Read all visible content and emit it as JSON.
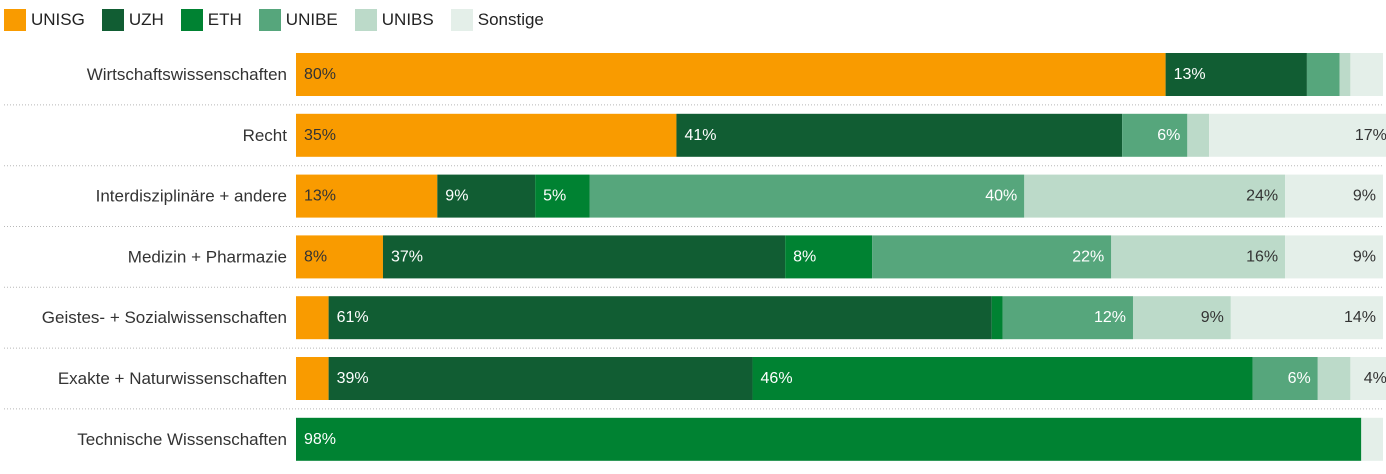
{
  "chart_data": {
    "type": "bar",
    "orientation": "horizontal",
    "stacked": true,
    "normalized_percent": true,
    "categories": [
      "Wirtschaftswissenschaften",
      "Recht",
      "Interdisziplinäre + andere",
      "Medizin + Pharmazie",
      "Geistes- + Sozialwissenschaften",
      "Exakte + Naturwissenschaften",
      "Technische Wissenschaften"
    ],
    "series": [
      {
        "name": "UNISG",
        "color": "#f99b00",
        "label_color": "#333333",
        "values": [
          80,
          35,
          13,
          8,
          3,
          3,
          0
        ],
        "labels": [
          "80%",
          "35%",
          "13%",
          "8%",
          "",
          "",
          ""
        ]
      },
      {
        "name": "UZH",
        "color": "#115d33",
        "label_color": "#ffffff",
        "values": [
          13,
          41,
          9,
          37,
          61,
          39,
          0
        ],
        "labels": [
          "13%",
          "41%",
          "9%",
          "37%",
          "61%",
          "39%",
          ""
        ]
      },
      {
        "name": "ETH",
        "color": "#008232",
        "label_color": "#ffffff",
        "values": [
          0,
          0,
          5,
          8,
          1,
          46,
          98
        ],
        "labels": [
          "",
          "",
          "5%",
          "8%",
          "",
          "46%",
          "98%"
        ]
      },
      {
        "name": "UNIBE",
        "color": "#56a67c",
        "label_color": "#ffffff",
        "values": [
          3,
          6,
          40,
          22,
          12,
          6,
          0
        ],
        "labels": [
          "",
          "6%",
          "40%",
          "22%",
          "12%",
          "6%",
          ""
        ]
      },
      {
        "name": "UNIBS",
        "color": "#bcdac9",
        "label_color": "#333333",
        "values": [
          1,
          2,
          24,
          16,
          9,
          3,
          0
        ],
        "labels": [
          "",
          "",
          "24%",
          "16%",
          "9%",
          "",
          ""
        ]
      },
      {
        "name": "Sonstige",
        "color": "#e4efe9",
        "label_color": "#333333",
        "values": [
          3,
          17,
          9,
          9,
          14,
          4,
          2
        ],
        "labels": [
          "",
          "17%",
          "9%",
          "9%",
          "14%",
          "4%",
          ""
        ]
      }
    ],
    "xlim": [
      0,
      100
    ],
    "legend_position": "top-left",
    "title": "",
    "xlabel": "",
    "ylabel": ""
  }
}
